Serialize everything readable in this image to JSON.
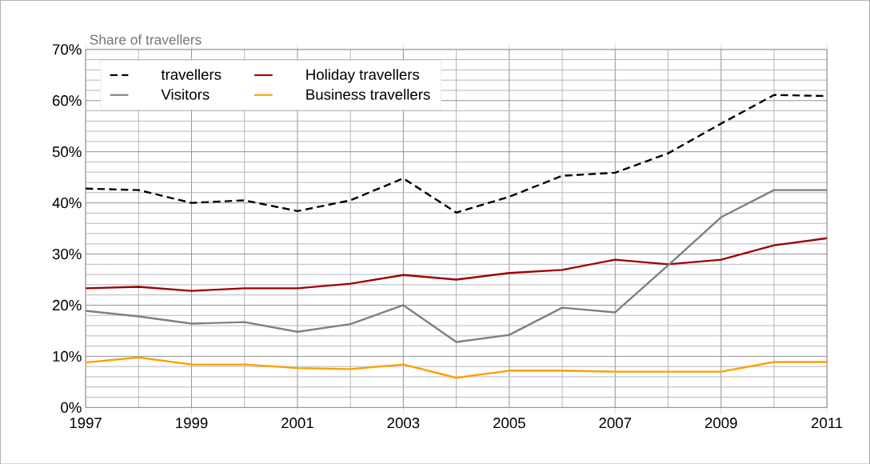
{
  "chart_data": {
    "type": "line",
    "ylabel": "Share of travellers",
    "x": [
      1997,
      1998,
      1999,
      2000,
      2001,
      2002,
      2003,
      2004,
      2005,
      2006,
      2007,
      2008,
      2009,
      2010,
      2011
    ],
    "series": [
      {
        "name": "travellers",
        "color": "#000000",
        "line_style": "dashed",
        "values": [
          42.8,
          42.5,
          40.0,
          40.5,
          38.4,
          40.5,
          44.8,
          38.1,
          41.2,
          45.3,
          45.9,
          49.7,
          55.5,
          61.1,
          60.9
        ]
      },
      {
        "name": "Holiday travellers",
        "color": "#a00000",
        "values": [
          23.3,
          23.6,
          22.8,
          23.3,
          23.3,
          24.2,
          25.9,
          25.0,
          26.3,
          26.9,
          28.9,
          28.0,
          28.9,
          31.7,
          33.1
        ]
      },
      {
        "name": "Visitors",
        "color": "#808080",
        "values": [
          18.9,
          17.8,
          16.4,
          16.7,
          14.8,
          16.3,
          20.0,
          12.8,
          14.2,
          19.5,
          18.6,
          27.8,
          37.2,
          42.5,
          42.5
        ]
      },
      {
        "name": "Business travellers",
        "color": "#ff9f00",
        "values": [
          8.8,
          9.8,
          8.4,
          8.4,
          7.7,
          7.5,
          8.4,
          5.8,
          7.2,
          7.2,
          7.0,
          7.0,
          7.0,
          8.9,
          8.9
        ]
      }
    ],
    "xlim": [
      1997,
      2011
    ],
    "xticks": [
      1997,
      1999,
      2001,
      2003,
      2005,
      2007,
      2009,
      2011
    ],
    "ylim": [
      0,
      70
    ],
    "yticks": [
      {
        "value": 0,
        "label": "0%"
      },
      {
        "value": 10,
        "label": "10%"
      },
      {
        "value": 20,
        "label": "20%"
      },
      {
        "value": 30,
        "label": "30%"
      },
      {
        "value": 40,
        "label": "40%"
      },
      {
        "value": 50,
        "label": "50%"
      },
      {
        "value": 60,
        "label": "60%"
      },
      {
        "value": 70,
        "label": "70%"
      }
    ],
    "grid": true,
    "legend": "top left",
    "line_style": "solid",
    "marker": "none"
  }
}
